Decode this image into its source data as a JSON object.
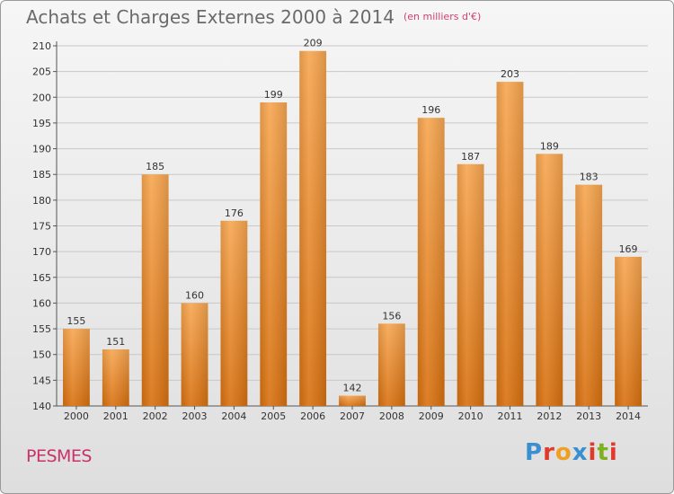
{
  "title": "Achats et Charges Externes 2000 à 2014",
  "subtitle": "(en milliers d'€)",
  "town": "PESMES",
  "logo": {
    "letters": [
      "P",
      "r",
      "o",
      "x",
      "i",
      "t",
      "i"
    ],
    "colors": [
      "#3a8fd0",
      "#e03a2a",
      "#f0a020",
      "#3a8fd0",
      "#e03a2a",
      "#80b020",
      "#e03a2a"
    ]
  },
  "chart_data": {
    "type": "bar",
    "categories": [
      "2000",
      "2001",
      "2002",
      "2003",
      "2004",
      "2005",
      "2006",
      "2007",
      "2008",
      "2009",
      "2010",
      "2011",
      "2012",
      "2013",
      "2014"
    ],
    "values": [
      155,
      151,
      185,
      160,
      176,
      199,
      209,
      142,
      156,
      196,
      187,
      203,
      189,
      183,
      169
    ],
    "ylim": [
      140,
      210
    ],
    "yticks": [
      140,
      145,
      150,
      155,
      160,
      165,
      170,
      175,
      180,
      185,
      190,
      195,
      200,
      205,
      210
    ],
    "grid": true,
    "bar_color": "#f08a20"
  }
}
